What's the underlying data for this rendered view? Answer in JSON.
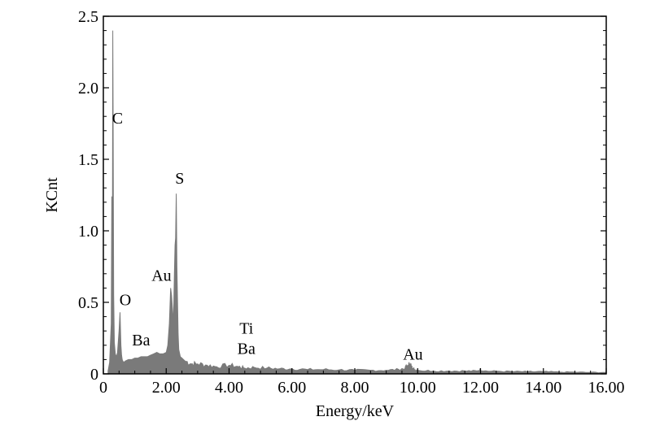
{
  "chart_data": {
    "type": "area",
    "xlabel": "Energy/keV",
    "ylabel": "KCnt",
    "xlim": [
      0,
      16
    ],
    "ylim": [
      0,
      2.5
    ],
    "x_ticks": [
      "0",
      "2.00",
      "4.00",
      "6.00",
      "8.00",
      "10.00",
      "12.00",
      "14.00",
      "16.00"
    ],
    "y_ticks": [
      "0",
      "0.5",
      "1.0",
      "1.5",
      "2.0",
      "2.5"
    ],
    "x_tick_values": [
      0,
      2,
      4,
      6,
      8,
      10,
      12,
      14,
      16
    ],
    "y_tick_values": [
      0,
      0.5,
      1.0,
      1.5,
      2.0,
      2.5
    ],
    "grid": false,
    "series_color": "#7a7a7a",
    "spectrum": {
      "x": [
        0.15,
        0.2,
        0.25,
        0.27,
        0.29,
        0.3,
        0.31,
        0.33,
        0.35,
        0.38,
        0.42,
        0.45,
        0.5,
        0.53,
        0.56,
        0.58,
        0.6,
        0.62,
        0.65,
        0.7,
        0.8,
        0.9,
        1.0,
        1.1,
        1.2,
        1.3,
        1.4,
        1.5,
        1.6,
        1.7,
        1.8,
        1.9,
        2.0,
        2.05,
        2.1,
        2.14,
        2.17,
        2.2,
        2.23,
        2.26,
        2.28,
        2.3,
        2.32,
        2.34,
        2.36,
        2.38,
        2.4,
        2.45,
        2.5,
        2.6,
        2.8,
        3.0,
        3.3,
        3.6,
        4.0,
        4.3,
        4.5,
        4.8,
        5.2,
        5.6,
        6.0,
        6.5,
        7.0,
        7.5,
        8.0,
        8.5,
        9.0,
        9.4,
        9.6,
        9.7,
        9.75,
        9.8,
        9.85,
        9.9,
        10.0,
        10.5,
        11.0,
        11.5,
        11.9,
        12.0,
        12.1,
        12.5,
        13.0,
        13.5,
        14.0,
        14.5,
        15.0,
        15.5,
        16.0
      ],
      "y": [
        0.02,
        0.08,
        0.35,
        1.24,
        1.05,
        2.4,
        1.8,
        0.55,
        0.22,
        0.14,
        0.12,
        0.15,
        0.3,
        0.43,
        0.2,
        0.13,
        0.1,
        0.09,
        0.08,
        0.09,
        0.1,
        0.1,
        0.11,
        0.11,
        0.12,
        0.12,
        0.12,
        0.13,
        0.14,
        0.15,
        0.14,
        0.14,
        0.15,
        0.2,
        0.35,
        0.6,
        0.55,
        0.45,
        0.35,
        0.7,
        0.9,
        0.95,
        1.26,
        0.75,
        0.5,
        0.28,
        0.17,
        0.12,
        0.11,
        0.09,
        0.07,
        0.07,
        0.06,
        0.05,
        0.06,
        0.05,
        0.04,
        0.045,
        0.04,
        0.035,
        0.035,
        0.03,
        0.03,
        0.028,
        0.025,
        0.025,
        0.025,
        0.03,
        0.04,
        0.06,
        0.07,
        0.05,
        0.04,
        0.03,
        0.025,
        0.02,
        0.02,
        0.02,
        0.02,
        0.03,
        0.02,
        0.018,
        0.016,
        0.015,
        0.015,
        0.012,
        0.012,
        0.01,
        0.01
      ]
    },
    "annotations": [
      {
        "text": "C",
        "x": 0.45,
        "y": 1.75
      },
      {
        "text": "O",
        "x": 0.7,
        "y": 0.48
      },
      {
        "text": "Ba",
        "x": 1.2,
        "y": 0.2
      },
      {
        "text": "Au",
        "x": 1.85,
        "y": 0.65
      },
      {
        "text": "S",
        "x": 2.43,
        "y": 1.33
      },
      {
        "text": "Ti",
        "x": 4.55,
        "y": 0.28
      },
      {
        "text": "Ba",
        "x": 4.55,
        "y": 0.14
      },
      {
        "text": "Au",
        "x": 9.85,
        "y": 0.1
      }
    ]
  }
}
